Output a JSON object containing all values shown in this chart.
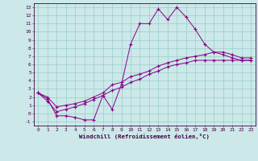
{
  "xlabel": "Windchill (Refroidissement éolien,°C)",
  "bg_color": "#cce8e8",
  "grid_color": "#99cccc",
  "line_color": "#880088",
  "xlim": [
    -0.5,
    23.5
  ],
  "ylim": [
    -1.5,
    13.5
  ],
  "xticks": [
    0,
    1,
    2,
    3,
    4,
    5,
    6,
    7,
    8,
    9,
    10,
    11,
    12,
    13,
    14,
    15,
    16,
    17,
    18,
    19,
    20,
    21,
    22,
    23
  ],
  "yticks": [
    -1,
    0,
    1,
    2,
    3,
    4,
    5,
    6,
    7,
    8,
    9,
    10,
    11,
    12,
    13
  ],
  "hours_main": [
    0,
    1,
    2,
    3,
    4,
    5,
    6,
    7,
    8,
    9,
    10,
    11,
    12,
    13,
    14,
    15,
    16,
    17,
    18,
    19,
    20,
    21,
    22,
    23
  ],
  "temp_line": [
    2.5,
    1.8,
    -0.3,
    -0.3,
    -0.5,
    -0.8,
    -0.8,
    2.2,
    0.5,
    3.5,
    8.5,
    11.0,
    11.0,
    12.8,
    11.5,
    13.0,
    11.8,
    10.3,
    8.5,
    7.5,
    7.2,
    6.8,
    6.5,
    6.5
  ],
  "line2": [
    2.5,
    2.0,
    0.8,
    1.0,
    1.2,
    1.5,
    2.0,
    2.5,
    3.5,
    3.8,
    4.5,
    4.8,
    5.2,
    5.8,
    6.2,
    6.5,
    6.8,
    7.0,
    7.2,
    7.5,
    7.5,
    7.2,
    6.8,
    6.8
  ],
  "line3": [
    2.5,
    1.5,
    0.2,
    0.5,
    0.8,
    1.2,
    1.7,
    2.2,
    2.8,
    3.2,
    3.8,
    4.2,
    4.8,
    5.2,
    5.7,
    6.0,
    6.2,
    6.5,
    6.5,
    6.5,
    6.5,
    6.5,
    6.5,
    6.5
  ]
}
